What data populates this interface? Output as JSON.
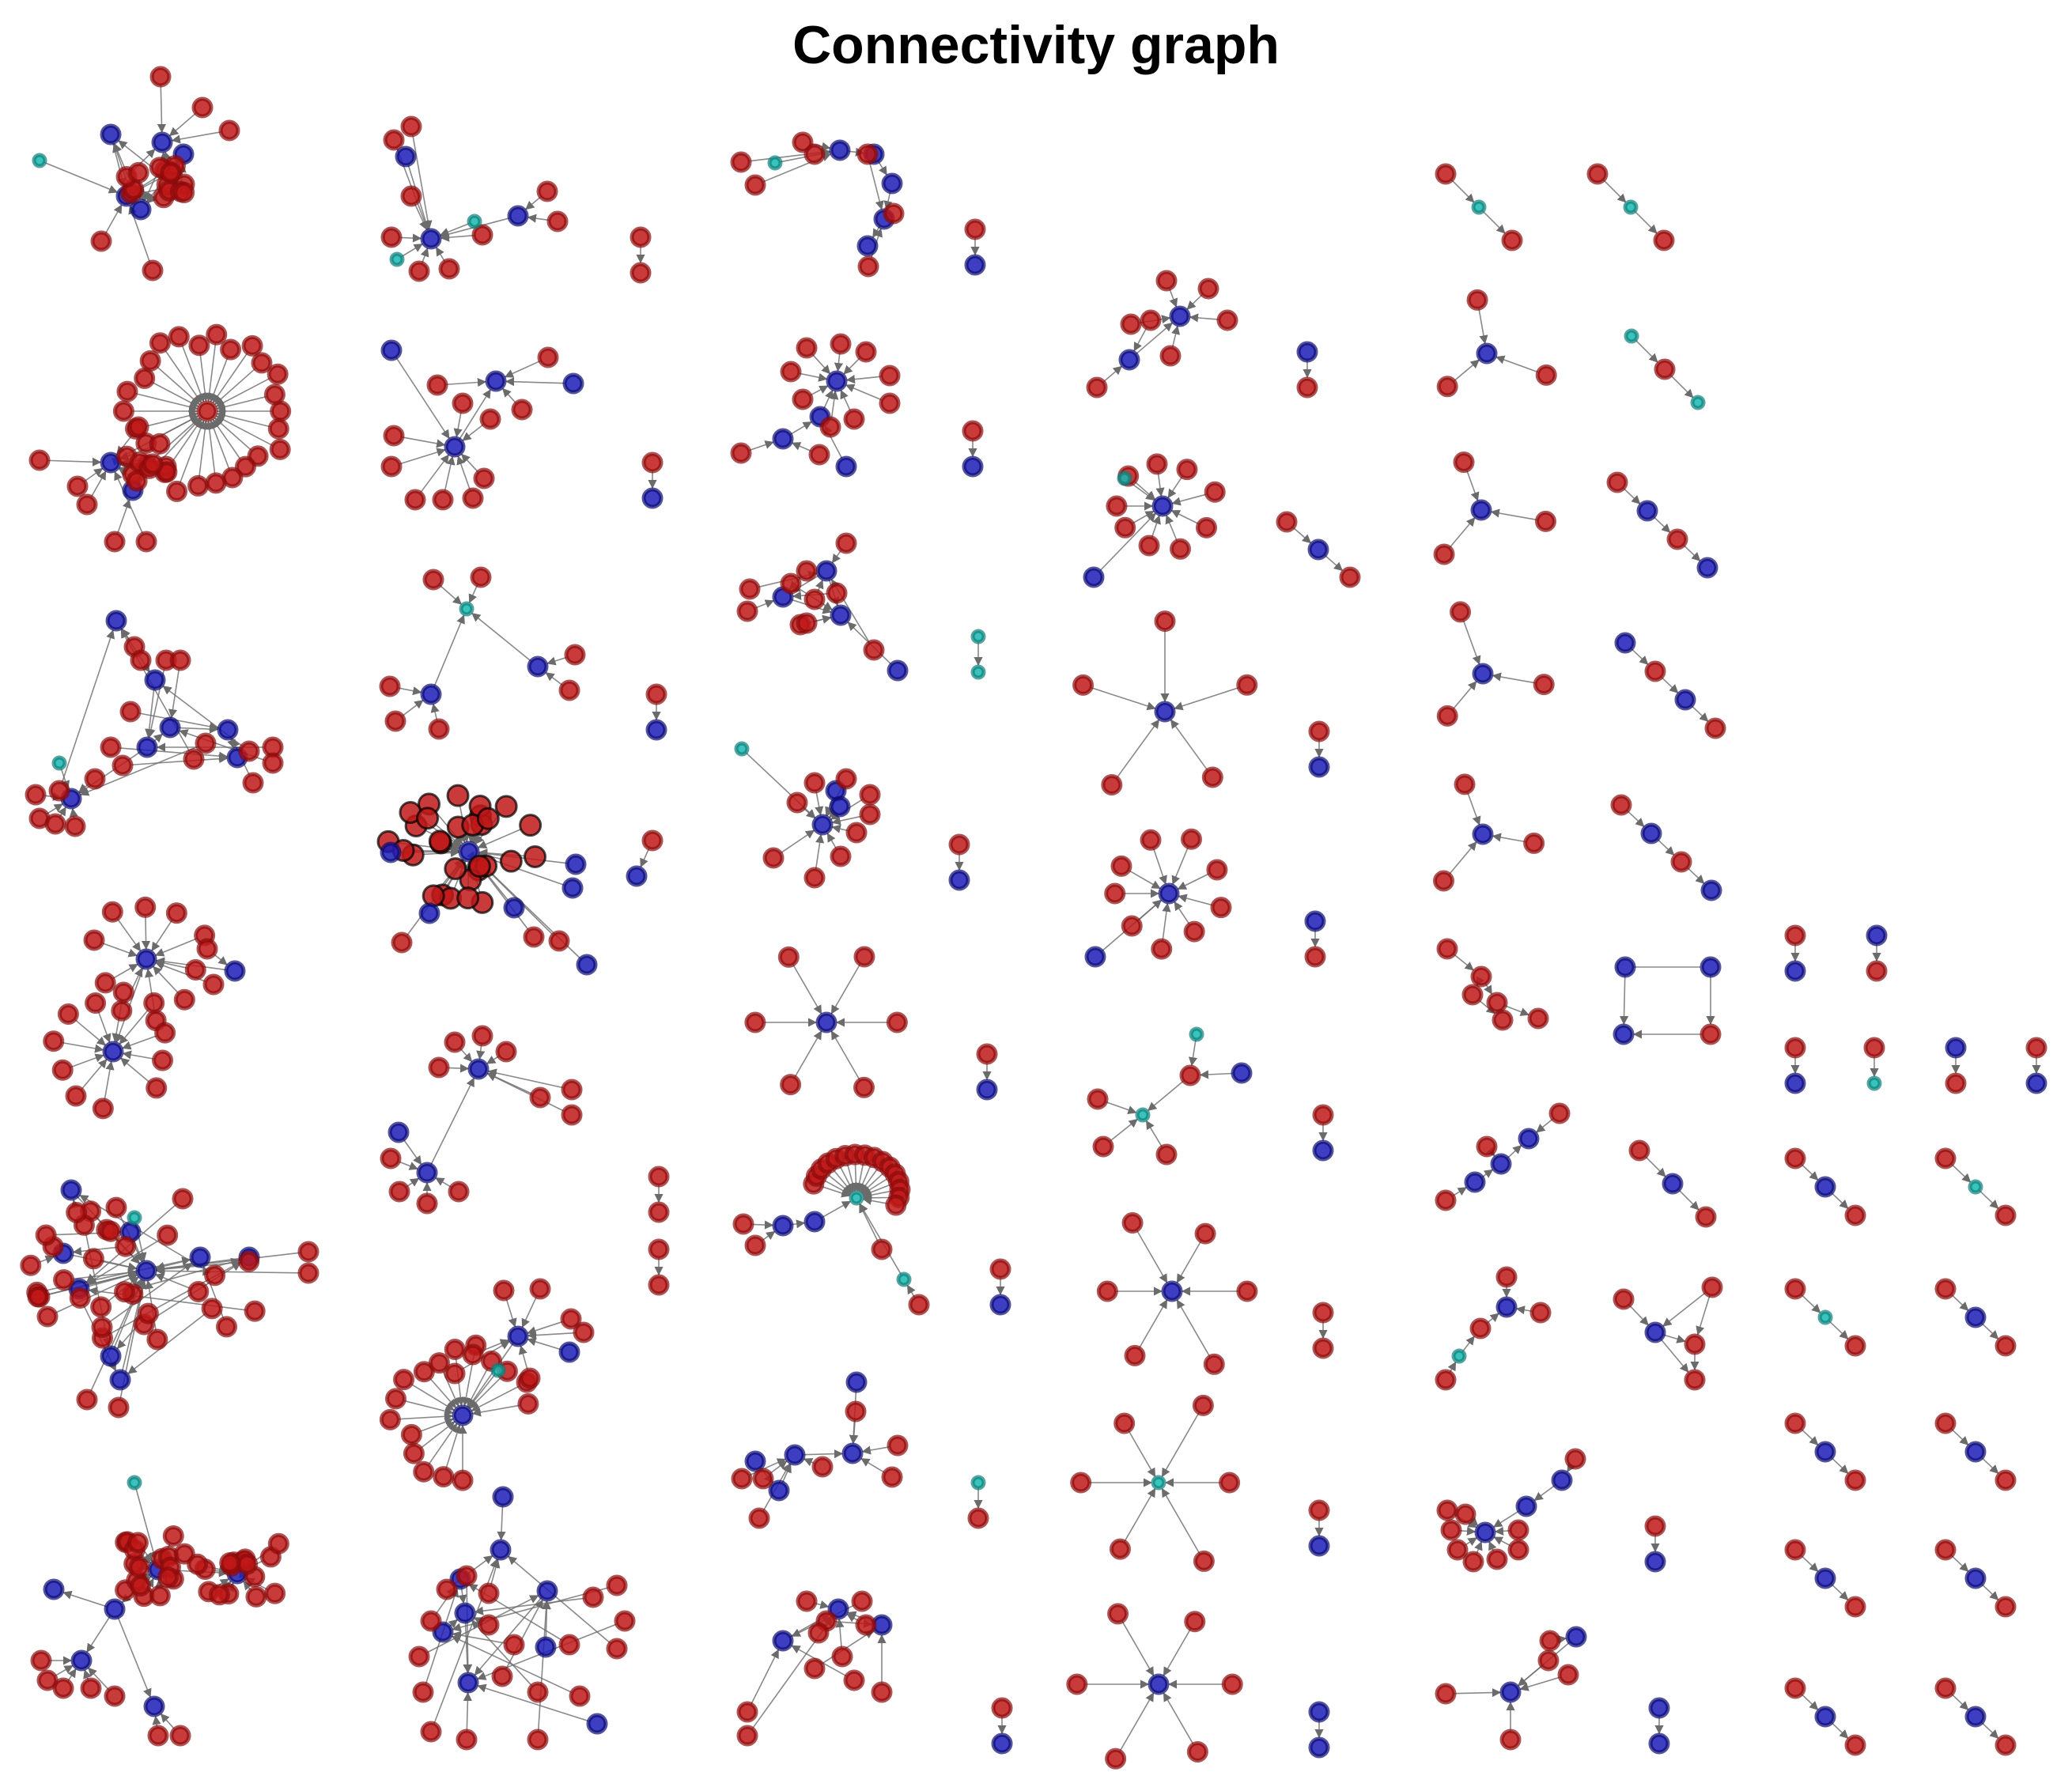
{
  "title": "Connectivity graph",
  "legend": [],
  "colors": {
    "node_red": "#c01818",
    "node_red_stroke": "#8a0a0a",
    "node_blue": "#1c1cb8",
    "node_blue_stroke": "#0a0a70",
    "node_cyan": "#17b8b0",
    "edge": "#6b6b6b",
    "bold_stroke": "#000000"
  },
  "node_types": [
    "red",
    "blue",
    "cyan"
  ],
  "component_count": 92
}
